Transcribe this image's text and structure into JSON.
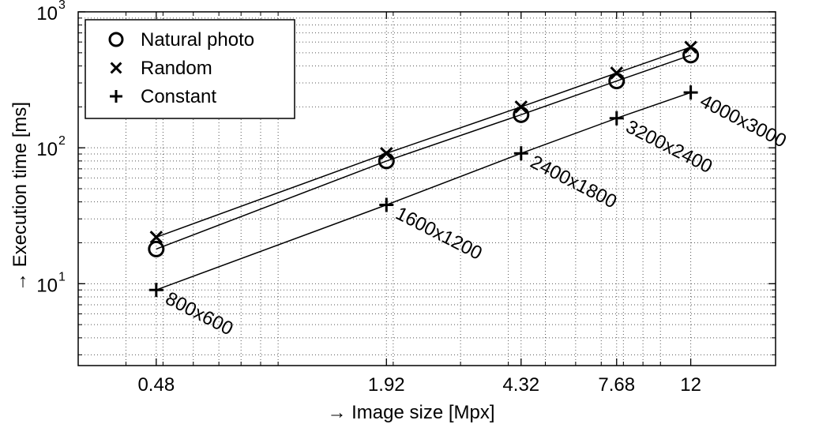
{
  "chart_data": {
    "type": "line",
    "xscale": "log",
    "yscale": "log",
    "xlim": [
      0.3,
      20
    ],
    "ylim": [
      2.5,
      1000
    ],
    "xticks": [
      0.48,
      1.92,
      4.32,
      7.68,
      12
    ],
    "xtick_labels": [
      "0.48",
      "1.92",
      "4.32",
      "7.68",
      "12"
    ],
    "yticks": [
      10,
      100,
      1000
    ],
    "ytick_labels": [
      {
        "base": "10",
        "exp": "1"
      },
      {
        "base": "10",
        "exp": "2"
      },
      {
        "base": "10",
        "exp": "3"
      }
    ],
    "xlabel": "→ Image size [Mpx]",
    "ylabel": "→ Execution time [ms]",
    "grid": true,
    "legend_position": "top-left",
    "x": [
      0.48,
      1.92,
      4.32,
      7.68,
      12
    ],
    "series": [
      {
        "name": "Natural photo",
        "marker": "circle",
        "values": [
          18,
          80,
          175,
          310,
          480
        ]
      },
      {
        "name": "Random",
        "marker": "x",
        "values": [
          22,
          91,
          200,
          355,
          550
        ]
      },
      {
        "name": "Constant",
        "marker": "plus",
        "values": [
          9,
          38,
          91,
          165,
          255
        ]
      }
    ],
    "annotations": [
      "800x600",
      "1600x1200",
      "2400x1800",
      "3200x2400",
      "4000x3000"
    ]
  }
}
